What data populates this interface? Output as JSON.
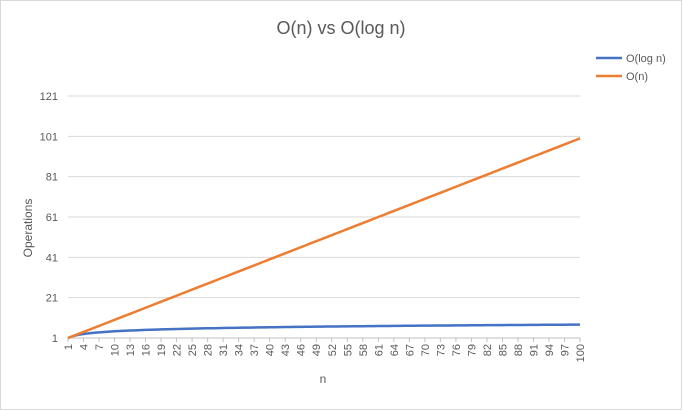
{
  "chart_data": {
    "type": "line",
    "title": "O(n) vs O(log n)",
    "xlabel": "n",
    "ylabel": "Operations",
    "x_tick_labels": [
      "1",
      "4",
      "7",
      "10",
      "13",
      "16",
      "19",
      "22",
      "25",
      "28",
      "31",
      "34",
      "37",
      "40",
      "43",
      "46",
      "49",
      "52",
      "55",
      "58",
      "61",
      "64",
      "67",
      "70",
      "73",
      "76",
      "79",
      "82",
      "85",
      "88",
      "91",
      "94",
      "97",
      "100"
    ],
    "y_ticks": [
      "1",
      "21",
      "41",
      "61",
      "81",
      "101",
      "121"
    ],
    "ylim": [
      1,
      121
    ],
    "xlim": [
      1,
      100
    ],
    "grid": true,
    "legend_position": "right",
    "series": [
      {
        "name": "O(log n)",
        "color": "#4472C4",
        "function": "log2",
        "sample_values": {
          "1": 0,
          "10": 3.32,
          "25": 4.64,
          "50": 5.64,
          "100": 6.64
        }
      },
      {
        "name": "O(n)",
        "color": "#ED7D31",
        "function": "linear",
        "sample_values": {
          "1": 1,
          "25": 25,
          "50": 50,
          "75": 75,
          "100": 100
        }
      }
    ]
  }
}
